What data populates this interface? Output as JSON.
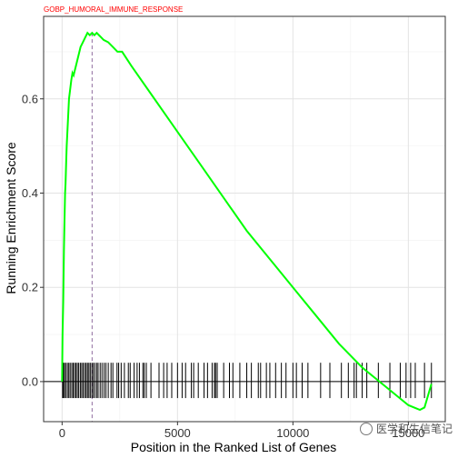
{
  "chart_data": {
    "type": "line",
    "title": "GOBP_HUMORAL_IMMUNE_RESPONSE",
    "xlabel": "Position in the Ranked List of Genes",
    "ylabel": "Running Enrichment Score",
    "xlim": [
      -800,
      16600
    ],
    "ylim": [
      -0.085,
      0.775
    ],
    "x_ticks": [
      0,
      5000,
      10000,
      15000
    ],
    "y_ticks": [
      0.0,
      0.2,
      0.4,
      0.6
    ],
    "x_tick_labels": [
      "0",
      "5000",
      "10000",
      "15000"
    ],
    "y_tick_labels": [
      "0.0",
      "0.2",
      "0.4",
      "0.6"
    ],
    "grid": true,
    "colors": {
      "curve": "#00ff00",
      "peak_line": "#8e6b9e",
      "title": "#ff0000",
      "hits": "#000000",
      "zero_line": "#000000"
    },
    "peak": {
      "x": 1300,
      "y": 0.74
    },
    "series": [
      {
        "x": [
          0,
          20,
          50,
          80,
          100,
          130,
          150,
          180,
          200,
          250,
          300,
          350,
          400,
          450,
          500,
          550,
          600,
          700,
          800,
          900,
          1000,
          1100,
          1200,
          1300,
          1400,
          1500,
          1600,
          1700,
          1800,
          2000,
          2200,
          2400,
          2600,
          3000,
          4000,
          5000,
          6000,
          7000,
          8000,
          9000,
          10000,
          11000,
          12000,
          13000,
          14000,
          15000,
          15500,
          15700,
          16000
        ],
        "y": [
          0.0,
          0.1,
          0.17,
          0.28,
          0.33,
          0.4,
          0.42,
          0.47,
          0.5,
          0.55,
          0.6,
          0.62,
          0.64,
          0.655,
          0.65,
          0.66,
          0.67,
          0.69,
          0.71,
          0.72,
          0.73,
          0.74,
          0.735,
          0.74,
          0.735,
          0.74,
          0.735,
          0.73,
          0.725,
          0.72,
          0.71,
          0.7,
          0.7,
          0.67,
          0.6,
          0.53,
          0.46,
          0.39,
          0.32,
          0.26,
          0.2,
          0.14,
          0.08,
          0.03,
          -0.01,
          -0.05,
          -0.06,
          -0.055,
          -0.005
        ]
      }
    ],
    "hits": [
      20,
      60,
      100,
      160,
      230,
      290,
      350,
      420,
      480,
      540,
      600,
      660,
      720,
      790,
      850,
      910,
      980,
      1040,
      1100,
      1160,
      1220,
      1290,
      1350,
      1420,
      1500,
      1560,
      1650,
      1730,
      1820,
      1900,
      2000,
      2120,
      2200,
      2380,
      2450,
      2560,
      2700,
      2870,
      2950,
      3120,
      3250,
      3350,
      3500,
      3560,
      3650,
      3850,
      4200,
      4400,
      4550,
      4750,
      5000,
      5200,
      5350,
      5600,
      5700,
      5900,
      6150,
      6300,
      6500,
      6600,
      6650,
      6720,
      7000,
      7250,
      7400,
      7700,
      8000,
      8200,
      8500,
      8600,
      8850,
      9000,
      9250,
      9500,
      9700,
      10000,
      10150,
      10400,
      10650,
      11200,
      11600,
      12100,
      12400,
      12650,
      12750,
      13000,
      13200,
      13700,
      14200,
      14650,
      14900,
      15100,
      15300,
      15700,
      16000
    ]
  },
  "watermark": "医学和生信笔记"
}
